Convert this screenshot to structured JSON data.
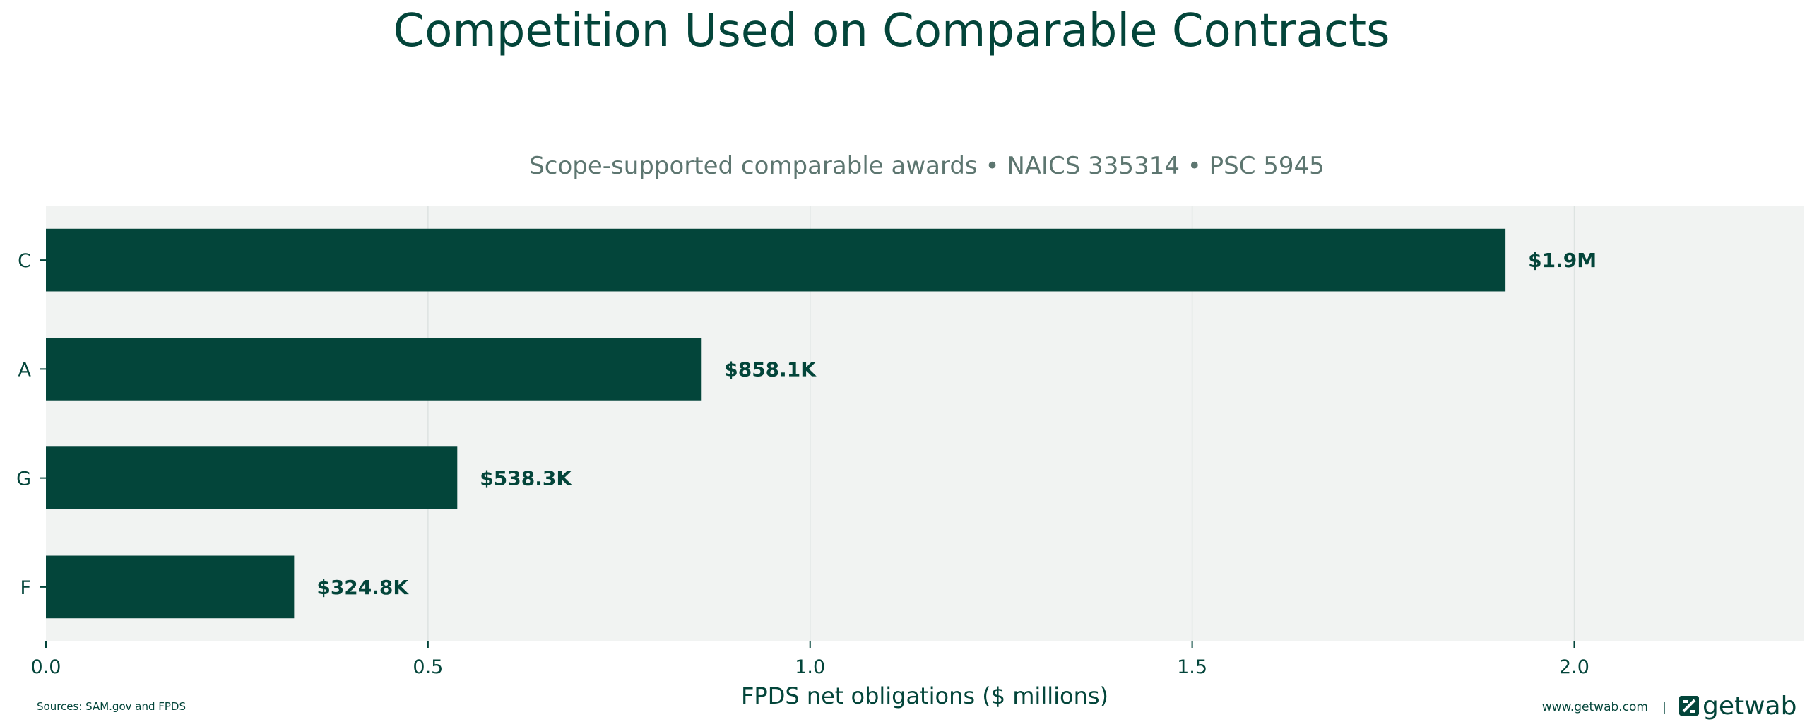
{
  "chart_data": {
    "type": "bar",
    "orientation": "horizontal",
    "title": "Competition Used on Comparable Contracts",
    "subtitle": "Scope-supported comparable awards • NAICS 335314 • PSC 5945",
    "xlabel": "FPDS net obligations ($ millions)",
    "ylabel": "",
    "categories": [
      "C",
      "A",
      "G",
      "F"
    ],
    "values": [
      1.91,
      0.8581,
      0.5383,
      0.3248
    ],
    "value_labels": [
      "$1.9M",
      "$858.1K",
      "$538.3K",
      "$324.8K"
    ],
    "xlim": [
      0,
      2.3
    ],
    "xticks": [
      0.0,
      0.5,
      1.0,
      1.5,
      2.0
    ],
    "xtick_labels": [
      "0.0",
      "0.5",
      "1.0",
      "1.5",
      "2.0"
    ],
    "grid": "vertical",
    "colors": {
      "bar": "#03453a",
      "plot_bg": "#f1f3f2",
      "grid": "#dde3e1",
      "text": "#03453a",
      "subtitle": "#5d7670"
    }
  },
  "footer": {
    "sources": "Sources: SAM.gov and FPDS",
    "website": "www.getwab.com",
    "separator": "|",
    "brand": "getwab",
    "logo_icon": "getwab-logo-icon"
  }
}
